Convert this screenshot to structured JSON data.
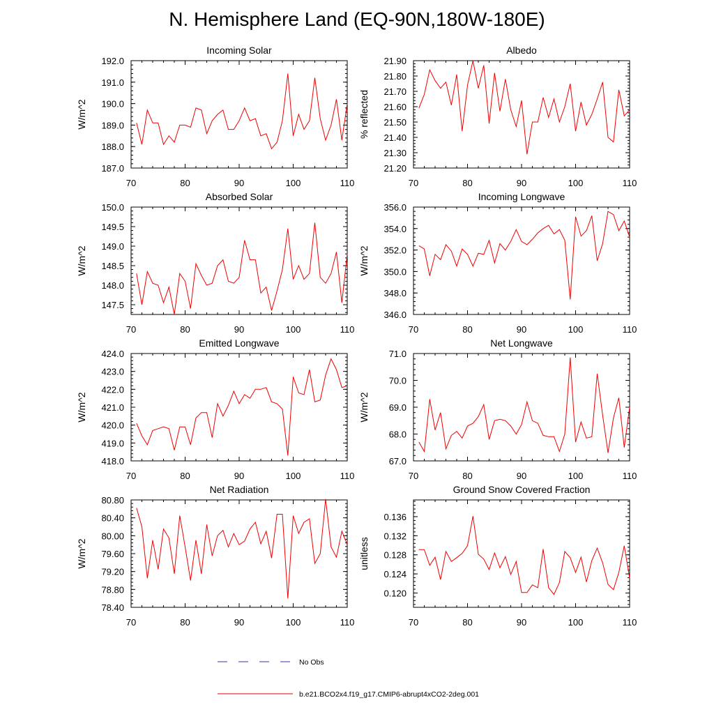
{
  "page_title": "N. Hemisphere Land (EQ-90N,180W-180E)",
  "legend": {
    "obs_label": "No Obs",
    "obs_color": "#3333aa",
    "model_label": "b.e21.BCO2x4.f19_g17.CMIP6-abrupt4xCO2-2deg.001",
    "model_color": "#ee0000"
  },
  "chart_data": [
    {
      "type": "line",
      "title": "Incoming Solar",
      "xlabel": "",
      "ylabel": "W/m^2",
      "xlim": [
        70,
        110
      ],
      "ylim": [
        187.0,
        192.0
      ],
      "xticks": [
        "70",
        "80",
        "90",
        "100",
        "110"
      ],
      "yticks": [
        "187.0",
        "188.0",
        "189.0",
        "190.0",
        "191.0",
        "192.0"
      ],
      "series": [
        {
          "name": "b.e21.BCO2x4.f19_g17.CMIP6-abrupt4xCO2-2deg.001",
          "x": [
            71,
            72,
            73,
            74,
            75,
            76,
            77,
            78,
            79,
            80,
            81,
            82,
            83,
            84,
            85,
            86,
            87,
            88,
            89,
            90,
            91,
            92,
            93,
            94,
            95,
            96,
            97,
            98,
            99,
            100,
            101,
            102,
            103,
            104,
            105,
            106,
            107,
            108,
            109,
            110
          ],
          "values": [
            189.1,
            188.1,
            189.7,
            189.1,
            189.1,
            188.1,
            188.5,
            188.2,
            189.0,
            189.0,
            188.9,
            189.8,
            189.7,
            188.6,
            189.2,
            189.5,
            189.7,
            188.8,
            188.8,
            189.2,
            189.8,
            189.2,
            189.3,
            188.5,
            188.6,
            187.9,
            188.2,
            189.2,
            191.4,
            188.5,
            189.5,
            188.8,
            189.2,
            191.2,
            189.3,
            188.3,
            189.0,
            190.2,
            188.3,
            190.0
          ]
        }
      ]
    },
    {
      "type": "line",
      "title": "Albedo",
      "xlabel": "",
      "ylabel": "% reflected",
      "xlim": [
        70,
        110
      ],
      "ylim": [
        21.2,
        21.9
      ],
      "xticks": [
        "70",
        "80",
        "90",
        "100",
        "110"
      ],
      "yticks": [
        "21.20",
        "21.30",
        "21.40",
        "21.50",
        "21.60",
        "21.70",
        "21.80",
        "21.90"
      ],
      "series": [
        {
          "name": "b.e21.BCO2x4.f19_g17.CMIP6-abrupt4xCO2-2deg.001",
          "x": [
            71,
            72,
            73,
            74,
            75,
            76,
            77,
            78,
            79,
            80,
            81,
            82,
            83,
            84,
            85,
            86,
            87,
            88,
            89,
            90,
            91,
            92,
            93,
            94,
            95,
            96,
            97,
            98,
            99,
            100,
            101,
            102,
            103,
            104,
            105,
            106,
            107,
            108,
            109,
            110
          ],
          "values": [
            21.59,
            21.68,
            21.84,
            21.77,
            21.72,
            21.76,
            21.61,
            21.81,
            21.44,
            21.74,
            21.9,
            21.72,
            21.87,
            21.49,
            21.82,
            21.57,
            21.78,
            21.58,
            21.47,
            21.64,
            21.29,
            21.5,
            21.5,
            21.66,
            21.53,
            21.65,
            21.5,
            21.6,
            21.75,
            21.44,
            21.63,
            21.48,
            21.55,
            21.65,
            21.76,
            21.4,
            21.37,
            21.71,
            21.54,
            21.58
          ]
        }
      ]
    },
    {
      "type": "line",
      "title": "Absorbed Solar",
      "xlabel": "",
      "ylabel": "W/m^2",
      "xlim": [
        70,
        110
      ],
      "ylim": [
        147.25,
        150.0
      ],
      "xticks": [
        "70",
        "80",
        "90",
        "100",
        "110"
      ],
      "yticks": [
        "147.5",
        "148.0",
        "148.5",
        "149.0",
        "149.5",
        "150.0"
      ],
      "series": [
        {
          "name": "b.e21.BCO2x4.f19_g17.CMIP6-abrupt4xCO2-2deg.001",
          "x": [
            71,
            72,
            73,
            74,
            75,
            76,
            77,
            78,
            79,
            80,
            81,
            82,
            83,
            84,
            85,
            86,
            87,
            88,
            89,
            90,
            91,
            92,
            93,
            94,
            95,
            96,
            97,
            98,
            99,
            100,
            101,
            102,
            103,
            104,
            105,
            106,
            107,
            108,
            109,
            110
          ],
          "values": [
            148.3,
            147.5,
            148.35,
            148.05,
            148.0,
            147.55,
            147.95,
            147.25,
            148.3,
            148.1,
            147.4,
            148.55,
            148.25,
            148.0,
            148.05,
            148.5,
            148.65,
            148.1,
            148.05,
            148.2,
            149.15,
            148.65,
            148.65,
            147.8,
            147.95,
            147.35,
            147.85,
            148.4,
            149.45,
            148.15,
            148.5,
            148.15,
            148.3,
            149.6,
            148.2,
            148.05,
            148.3,
            148.85,
            147.55,
            148.8
          ]
        }
      ]
    },
    {
      "type": "line",
      "title": "Incoming Longwave",
      "xlabel": "",
      "ylabel": "W/m^2",
      "xlim": [
        70,
        110
      ],
      "ylim": [
        346.0,
        356.0
      ],
      "xticks": [
        "70",
        "80",
        "90",
        "100",
        "110"
      ],
      "yticks": [
        "346.0",
        "348.0",
        "350.0",
        "352.0",
        "354.0",
        "356.0"
      ],
      "series": [
        {
          "name": "b.e21.BCO2x4.f19_g17.CMIP6-abrupt4xCO2-2deg.001",
          "x": [
            71,
            72,
            73,
            74,
            75,
            76,
            77,
            78,
            79,
            80,
            81,
            82,
            83,
            84,
            85,
            86,
            87,
            88,
            89,
            90,
            91,
            92,
            93,
            94,
            95,
            96,
            97,
            98,
            99,
            100,
            101,
            102,
            103,
            104,
            105,
            106,
            107,
            108,
            109,
            110
          ],
          "values": [
            352.4,
            352.1,
            349.6,
            351.6,
            351.1,
            352.5,
            351.9,
            350.5,
            352.1,
            351.6,
            350.5,
            351.7,
            351.6,
            352.9,
            350.8,
            352.6,
            352.0,
            352.8,
            353.9,
            352.8,
            352.5,
            353.0,
            353.6,
            354.0,
            354.3,
            353.5,
            353.9,
            352.9,
            347.4,
            355.1,
            353.3,
            353.8,
            355.2,
            351.0,
            352.6,
            355.6,
            355.3,
            353.8,
            354.7,
            353.2
          ]
        }
      ]
    },
    {
      "type": "line",
      "title": "Emitted Longwave",
      "xlabel": "",
      "ylabel": "W/m^2",
      "xlim": [
        70,
        110
      ],
      "ylim": [
        418.0,
        424.0
      ],
      "xticks": [
        "70",
        "80",
        "90",
        "100",
        "110"
      ],
      "yticks": [
        "418.0",
        "419.0",
        "420.0",
        "421.0",
        "422.0",
        "423.0",
        "424.0"
      ],
      "series": [
        {
          "name": "b.e21.BCO2x4.f19_g17.CMIP6-abrupt4xCO2-2deg.001",
          "x": [
            71,
            72,
            73,
            74,
            75,
            76,
            77,
            78,
            79,
            80,
            81,
            82,
            83,
            84,
            85,
            86,
            87,
            88,
            89,
            90,
            91,
            92,
            93,
            94,
            95,
            96,
            97,
            98,
            99,
            100,
            101,
            102,
            103,
            104,
            105,
            106,
            107,
            108,
            109,
            110
          ],
          "values": [
            420.1,
            419.4,
            418.9,
            419.7,
            419.8,
            419.9,
            419.8,
            418.6,
            419.9,
            419.9,
            418.9,
            420.4,
            420.7,
            420.7,
            419.3,
            421.2,
            420.5,
            421.1,
            421.9,
            421.2,
            421.7,
            421.5,
            422.0,
            422.0,
            422.1,
            421.3,
            421.2,
            420.9,
            418.3,
            422.7,
            421.8,
            421.7,
            423.1,
            421.3,
            421.4,
            422.8,
            423.7,
            423.1,
            422.1,
            422.2
          ]
        }
      ]
    },
    {
      "type": "line",
      "title": "Net Longwave",
      "xlabel": "",
      "ylabel": "W/m^2",
      "xlim": [
        70,
        110
      ],
      "ylim": [
        67.0,
        71.0
      ],
      "xticks": [
        "70",
        "80",
        "90",
        "100",
        "110"
      ],
      "yticks": [
        "67.0",
        "68.0",
        "69.0",
        "70.0",
        "71.0"
      ],
      "series": [
        {
          "name": "b.e21.BCO2x4.f19_g17.CMIP6-abrupt4xCO2-2deg.001",
          "x": [
            71,
            72,
            73,
            74,
            75,
            76,
            77,
            78,
            79,
            80,
            81,
            82,
            83,
            84,
            85,
            86,
            87,
            88,
            89,
            90,
            91,
            92,
            93,
            94,
            95,
            96,
            97,
            98,
            99,
            100,
            101,
            102,
            103,
            104,
            105,
            106,
            107,
            108,
            109,
            110
          ],
          "values": [
            67.7,
            67.35,
            69.3,
            68.15,
            68.8,
            67.45,
            67.95,
            68.1,
            67.85,
            68.3,
            68.4,
            68.65,
            69.1,
            67.8,
            68.5,
            68.55,
            68.5,
            68.3,
            68.0,
            68.35,
            69.2,
            68.5,
            68.4,
            67.95,
            67.9,
            67.9,
            67.35,
            68.0,
            70.85,
            67.7,
            68.45,
            67.85,
            67.9,
            70.25,
            68.7,
            67.3,
            68.6,
            69.35,
            67.5,
            69.0
          ]
        }
      ]
    },
    {
      "type": "line",
      "title": "Net Radiation",
      "xlabel": "",
      "ylabel": "W/m^2",
      "xlim": [
        70,
        110
      ],
      "ylim": [
        78.4,
        80.8
      ],
      "xticks": [
        "70",
        "80",
        "90",
        "100",
        "110"
      ],
      "yticks": [
        "78.40",
        "78.80",
        "79.20",
        "79.60",
        "80.00",
        "80.40",
        "80.80"
      ],
      "series": [
        {
          "name": "b.e21.BCO2x4.f19_g17.CMIP6-abrupt4xCO2-2deg.001",
          "x": [
            71,
            72,
            73,
            74,
            75,
            76,
            77,
            78,
            79,
            80,
            81,
            82,
            83,
            84,
            85,
            86,
            87,
            88,
            89,
            90,
            91,
            92,
            93,
            94,
            95,
            96,
            97,
            98,
            99,
            100,
            101,
            102,
            103,
            104,
            105,
            106,
            107,
            108,
            109,
            110
          ],
          "values": [
            80.62,
            80.2,
            79.05,
            79.9,
            79.25,
            80.15,
            79.95,
            79.15,
            80.45,
            79.75,
            79.0,
            79.9,
            79.15,
            80.25,
            79.55,
            80.0,
            80.12,
            79.75,
            80.05,
            79.8,
            79.88,
            80.15,
            80.3,
            79.82,
            80.1,
            79.5,
            80.48,
            80.48,
            78.6,
            80.45,
            80.05,
            80.3,
            80.38,
            79.38,
            79.6,
            80.82,
            79.75,
            79.52,
            80.1,
            79.8
          ]
        }
      ]
    },
    {
      "type": "line",
      "title": "Ground Snow Covered Fraction",
      "xlabel": "",
      "ylabel": "unitless",
      "xlim": [
        70,
        110
      ],
      "ylim": [
        0.117,
        0.1395
      ],
      "xticks": [
        "70",
        "80",
        "90",
        "100",
        "110"
      ],
      "yticks": [
        "0.120",
        "0.124",
        "0.128",
        "0.132",
        "0.136"
      ],
      "series": [
        {
          "name": "b.e21.BCO2x4.f19_g17.CMIP6-abrupt4xCO2-2deg.001",
          "x": [
            71,
            72,
            73,
            74,
            75,
            76,
            77,
            78,
            79,
            80,
            81,
            82,
            83,
            84,
            85,
            86,
            87,
            88,
            89,
            90,
            91,
            92,
            93,
            94,
            95,
            96,
            97,
            98,
            99,
            100,
            101,
            102,
            103,
            104,
            105,
            106,
            107,
            108,
            109,
            110
          ],
          "values": [
            0.1291,
            0.1291,
            0.1258,
            0.1275,
            0.1228,
            0.1287,
            0.1266,
            0.1274,
            0.1283,
            0.1299,
            0.1361,
            0.1281,
            0.1271,
            0.1249,
            0.1284,
            0.1253,
            0.1276,
            0.1239,
            0.1266,
            0.1201,
            0.1201,
            0.1217,
            0.1211,
            0.1292,
            0.1211,
            0.1197,
            0.1222,
            0.1287,
            0.1274,
            0.1243,
            0.1275,
            0.1223,
            0.1268,
            0.1294,
            0.1263,
            0.1218,
            0.1207,
            0.1243,
            0.1299,
            0.1231
          ]
        }
      ]
    }
  ]
}
